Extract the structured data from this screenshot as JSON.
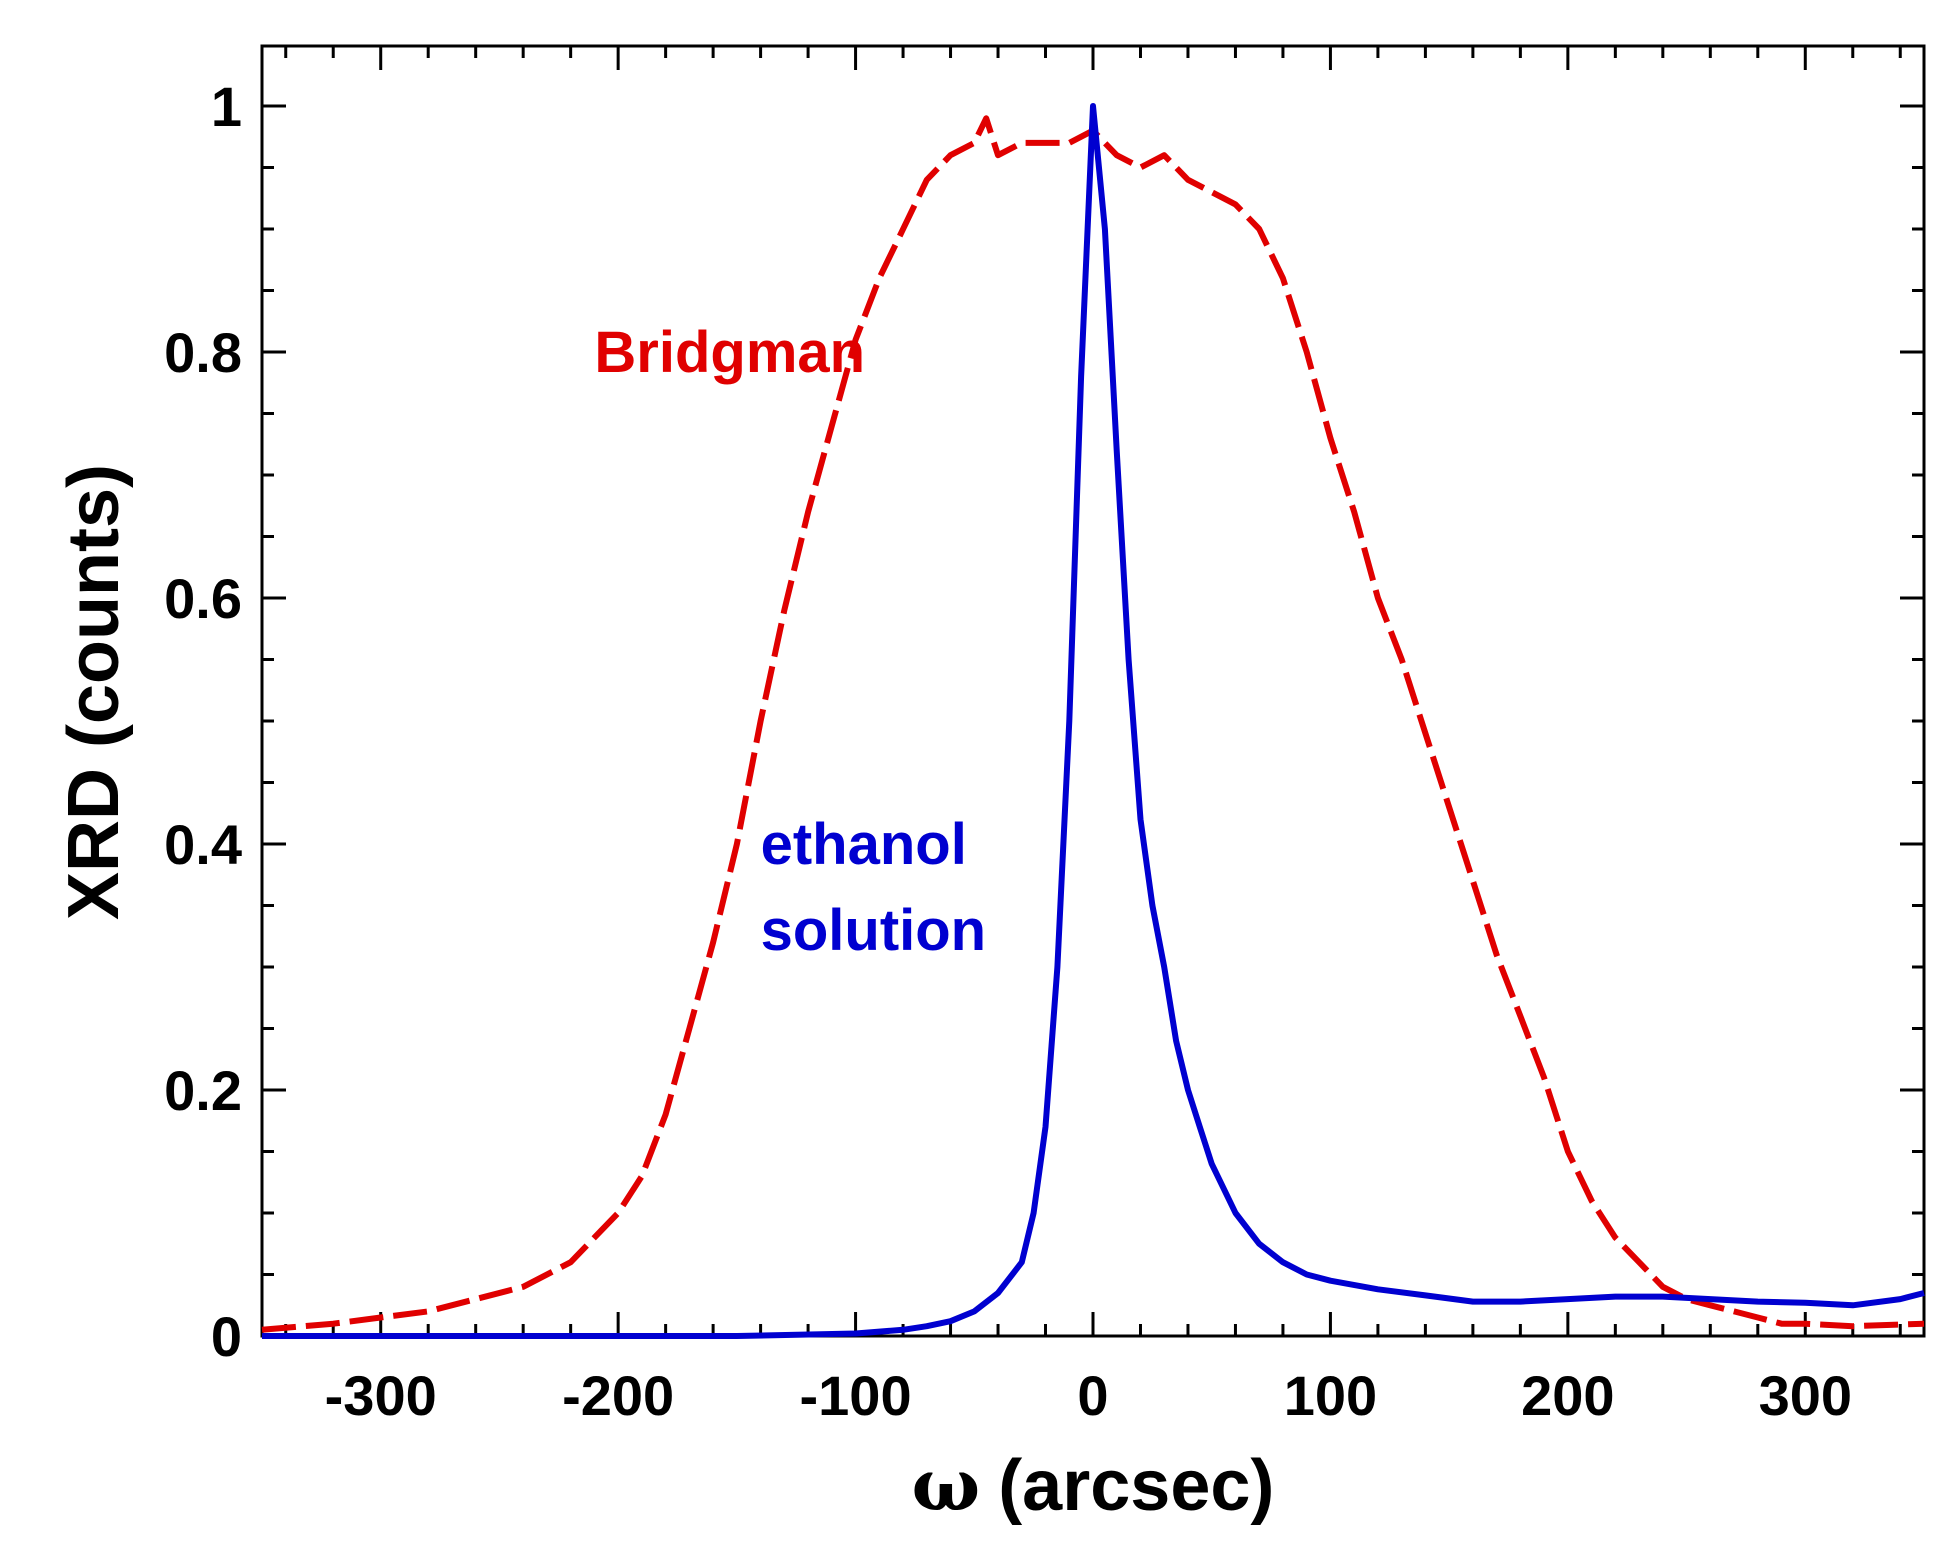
{
  "chart_data": {
    "type": "line",
    "title": "",
    "xlabel_symbol": "ω",
    "xlabel_unit": "(arcsec)",
    "ylabel": "XRD (counts)",
    "xlim": [
      -350,
      350
    ],
    "ylim": [
      0,
      1.0
    ],
    "xticks": [
      -300,
      -200,
      -100,
      0,
      100,
      200,
      300
    ],
    "xtick_labels": [
      "-300",
      "-200",
      "-100",
      "0",
      "100",
      "200",
      "300"
    ],
    "yticks": [
      0,
      0.2,
      0.4,
      0.6,
      0.8,
      1
    ],
    "ytick_labels": [
      "0",
      "0.2",
      "0.4",
      "0.6",
      "0.8",
      "1"
    ],
    "grid": false,
    "series": [
      {
        "name": "Bridgman",
        "color": "#e00000",
        "style": "dashed",
        "x": [
          -350,
          -320,
          -300,
          -280,
          -260,
          -240,
          -220,
          -200,
          -190,
          -180,
          -170,
          -160,
          -150,
          -140,
          -130,
          -120,
          -110,
          -100,
          -90,
          -80,
          -70,
          -60,
          -50,
          -45,
          -40,
          -30,
          -20,
          -10,
          0,
          10,
          20,
          30,
          40,
          50,
          60,
          70,
          80,
          90,
          100,
          110,
          120,
          130,
          140,
          150,
          160,
          170,
          180,
          190,
          200,
          210,
          220,
          230,
          240,
          250,
          260,
          270,
          280,
          290,
          300,
          320,
          350
        ],
        "y": [
          0.005,
          0.01,
          0.015,
          0.02,
          0.03,
          0.04,
          0.06,
          0.1,
          0.13,
          0.18,
          0.25,
          0.32,
          0.4,
          0.5,
          0.59,
          0.67,
          0.74,
          0.81,
          0.86,
          0.9,
          0.94,
          0.96,
          0.97,
          0.99,
          0.96,
          0.97,
          0.97,
          0.97,
          0.98,
          0.96,
          0.95,
          0.96,
          0.94,
          0.93,
          0.92,
          0.9,
          0.86,
          0.8,
          0.73,
          0.67,
          0.6,
          0.55,
          0.49,
          0.43,
          0.37,
          0.31,
          0.26,
          0.21,
          0.15,
          0.11,
          0.08,
          0.06,
          0.04,
          0.03,
          0.025,
          0.02,
          0.015,
          0.01,
          0.01,
          0.008,
          0.01
        ]
      },
      {
        "name": "ethanol solution",
        "color": "#0000d0",
        "style": "solid",
        "x": [
          -350,
          -300,
          -200,
          -150,
          -100,
          -80,
          -70,
          -60,
          -50,
          -40,
          -30,
          -25,
          -20,
          -15,
          -10,
          -5,
          0,
          5,
          10,
          15,
          20,
          25,
          30,
          35,
          40,
          45,
          50,
          60,
          70,
          80,
          90,
          100,
          120,
          140,
          160,
          180,
          200,
          220,
          240,
          260,
          280,
          300,
          320,
          340,
          350
        ],
        "y": [
          0.0,
          0.0,
          0.0,
          0.0,
          0.002,
          0.005,
          0.008,
          0.012,
          0.02,
          0.035,
          0.06,
          0.1,
          0.17,
          0.3,
          0.5,
          0.78,
          1.0,
          0.9,
          0.72,
          0.55,
          0.42,
          0.35,
          0.3,
          0.24,
          0.2,
          0.17,
          0.14,
          0.1,
          0.075,
          0.06,
          0.05,
          0.045,
          0.038,
          0.033,
          0.028,
          0.028,
          0.03,
          0.032,
          0.032,
          0.03,
          0.028,
          0.027,
          0.025,
          0.03,
          0.035
        ]
      }
    ],
    "annotations": [
      {
        "text": "Bridgman",
        "color": "#e00000",
        "x": -210,
        "y": 0.8
      },
      {
        "text": "ethanol",
        "color": "#0000d0",
        "x": -140,
        "y": 0.4
      },
      {
        "text": "solution",
        "color": "#0000d0",
        "x": -140,
        "y": 0.33
      }
    ]
  }
}
